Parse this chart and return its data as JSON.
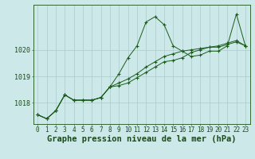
{
  "title": "Graphe pression niveau de la mer (hPa)",
  "bg_color": "#cce8e8",
  "grid_color": "#aacccc",
  "line_color": "#1a5c1a",
  "x_labels": [
    "0",
    "1",
    "2",
    "3",
    "4",
    "5",
    "6",
    "7",
    "8",
    "9",
    "10",
    "11",
    "12",
    "13",
    "14",
    "15",
    "16",
    "17",
    "18",
    "19",
    "20",
    "21",
    "22",
    "23"
  ],
  "ylim": [
    1017.2,
    1021.7
  ],
  "yticks": [
    1018,
    1019,
    1020
  ],
  "series1": [
    1017.55,
    1017.4,
    1017.7,
    1018.3,
    1018.1,
    1018.1,
    1018.1,
    1018.2,
    1018.6,
    1019.1,
    1019.7,
    1020.15,
    1021.05,
    1021.25,
    1020.95,
    1020.15,
    1019.95,
    1019.75,
    1019.8,
    1019.95,
    1019.95,
    1020.15,
    1021.35,
    1020.15
  ],
  "series2": [
    1017.55,
    1017.4,
    1017.7,
    1018.3,
    1018.1,
    1018.1,
    1018.1,
    1018.2,
    1018.6,
    1018.65,
    1018.75,
    1018.95,
    1019.15,
    1019.35,
    1019.55,
    1019.6,
    1019.7,
    1019.9,
    1020.0,
    1020.1,
    1020.1,
    1020.2,
    1020.3,
    1020.15
  ],
  "series3": [
    1017.55,
    1017.4,
    1017.7,
    1018.3,
    1018.1,
    1018.1,
    1018.1,
    1018.2,
    1018.6,
    1018.75,
    1018.9,
    1019.1,
    1019.35,
    1019.55,
    1019.75,
    1019.85,
    1019.95,
    1020.0,
    1020.05,
    1020.1,
    1020.15,
    1020.25,
    1020.35,
    1020.15
  ],
  "title_fontsize": 7.5,
  "tick_fontsize": 5.5,
  "figwidth": 3.2,
  "figheight": 2.0,
  "dpi": 100
}
